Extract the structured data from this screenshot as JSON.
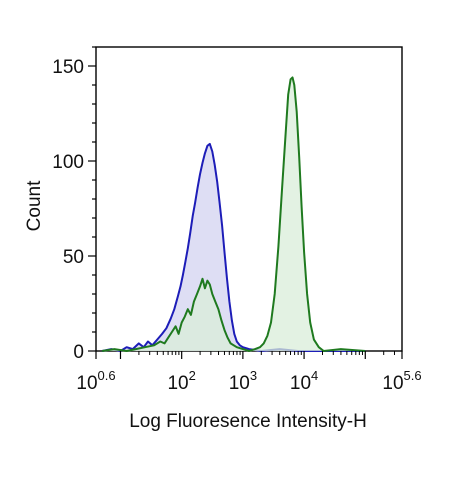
{
  "chart_data": {
    "type": "line",
    "title": "",
    "xlabel": "Log Fluoresence Intensity-H",
    "ylabel": "Count",
    "x_scale": "log10",
    "xlim": [
      0.6,
      5.6
    ],
    "ylim": [
      0,
      160
    ],
    "x_ticks": [
      {
        "base": "10",
        "exp": "0.6",
        "value": 0.6
      },
      {
        "base": "10",
        "exp": "2",
        "value": 2
      },
      {
        "base": "10",
        "exp": "3",
        "value": 3
      },
      {
        "base": "10",
        "exp": "4",
        "value": 4
      },
      {
        "base": "10",
        "exp": "5.6",
        "value": 5.6
      }
    ],
    "y_ticks": [
      "0",
      "50",
      "100",
      "150"
    ],
    "y_ticks_values": [
      0,
      50,
      100,
      150
    ],
    "grid": false,
    "legend": "none",
    "series": [
      {
        "color": "#1d1db8",
        "fill": "#d3d3f0",
        "points": [
          [
            0.7,
            0
          ],
          [
            0.85,
            1
          ],
          [
            1.0,
            0
          ],
          [
            1.1,
            2
          ],
          [
            1.2,
            1
          ],
          [
            1.3,
            4
          ],
          [
            1.38,
            2
          ],
          [
            1.45,
            5
          ],
          [
            1.52,
            3
          ],
          [
            1.6,
            6
          ],
          [
            1.68,
            9
          ],
          [
            1.75,
            12
          ],
          [
            1.82,
            17
          ],
          [
            1.88,
            22
          ],
          [
            1.94,
            29
          ],
          [
            1.98,
            34
          ],
          [
            2.02,
            40
          ],
          [
            2.06,
            47
          ],
          [
            2.1,
            54
          ],
          [
            2.14,
            62
          ],
          [
            2.18,
            71
          ],
          [
            2.22,
            78
          ],
          [
            2.26,
            86
          ],
          [
            2.3,
            93
          ],
          [
            2.34,
            99
          ],
          [
            2.38,
            104
          ],
          [
            2.42,
            108
          ],
          [
            2.46,
            109
          ],
          [
            2.5,
            105
          ],
          [
            2.54,
            98
          ],
          [
            2.58,
            89
          ],
          [
            2.62,
            78
          ],
          [
            2.66,
            66
          ],
          [
            2.7,
            52
          ],
          [
            2.74,
            38
          ],
          [
            2.78,
            26
          ],
          [
            2.82,
            16
          ],
          [
            2.86,
            9
          ],
          [
            2.9,
            5
          ],
          [
            2.95,
            3
          ],
          [
            3.0,
            2
          ],
          [
            3.1,
            1
          ],
          [
            3.3,
            0
          ],
          [
            3.6,
            1
          ],
          [
            3.9,
            0
          ],
          [
            4.2,
            0
          ],
          [
            4.6,
            0
          ],
          [
            5.0,
            0
          ]
        ]
      },
      {
        "color": "#1f7a1f",
        "fill": "#d9eed9",
        "points": [
          [
            0.7,
            0
          ],
          [
            0.9,
            1
          ],
          [
            1.1,
            0
          ],
          [
            1.25,
            1
          ],
          [
            1.4,
            2
          ],
          [
            1.55,
            3
          ],
          [
            1.65,
            5
          ],
          [
            1.72,
            4
          ],
          [
            1.78,
            7
          ],
          [
            1.84,
            10
          ],
          [
            1.9,
            13
          ],
          [
            1.95,
            9
          ],
          [
            2.0,
            15
          ],
          [
            2.05,
            18
          ],
          [
            2.1,
            22
          ],
          [
            2.15,
            19
          ],
          [
            2.2,
            26
          ],
          [
            2.25,
            30
          ],
          [
            2.3,
            34
          ],
          [
            2.34,
            38
          ],
          [
            2.38,
            33
          ],
          [
            2.42,
            37
          ],
          [
            2.46,
            35
          ],
          [
            2.5,
            30
          ],
          [
            2.55,
            26
          ],
          [
            2.6,
            22
          ],
          [
            2.65,
            16
          ],
          [
            2.7,
            11
          ],
          [
            2.75,
            7
          ],
          [
            2.8,
            4
          ],
          [
            2.9,
            2
          ],
          [
            3.0,
            1
          ],
          [
            3.1,
            0
          ],
          [
            3.2,
            1
          ],
          [
            3.28,
            2
          ],
          [
            3.34,
            4
          ],
          [
            3.4,
            8
          ],
          [
            3.46,
            15
          ],
          [
            3.52,
            30
          ],
          [
            3.58,
            55
          ],
          [
            3.64,
            85
          ],
          [
            3.7,
            115
          ],
          [
            3.74,
            135
          ],
          [
            3.78,
            143
          ],
          [
            3.81,
            144
          ],
          [
            3.84,
            140
          ],
          [
            3.88,
            126
          ],
          [
            3.92,
            102
          ],
          [
            3.96,
            76
          ],
          [
            4.0,
            52
          ],
          [
            4.05,
            30
          ],
          [
            4.1,
            15
          ],
          [
            4.16,
            6
          ],
          [
            4.24,
            2
          ],
          [
            4.32,
            0
          ],
          [
            4.6,
            1
          ],
          [
            5.0,
            0
          ]
        ]
      }
    ]
  }
}
